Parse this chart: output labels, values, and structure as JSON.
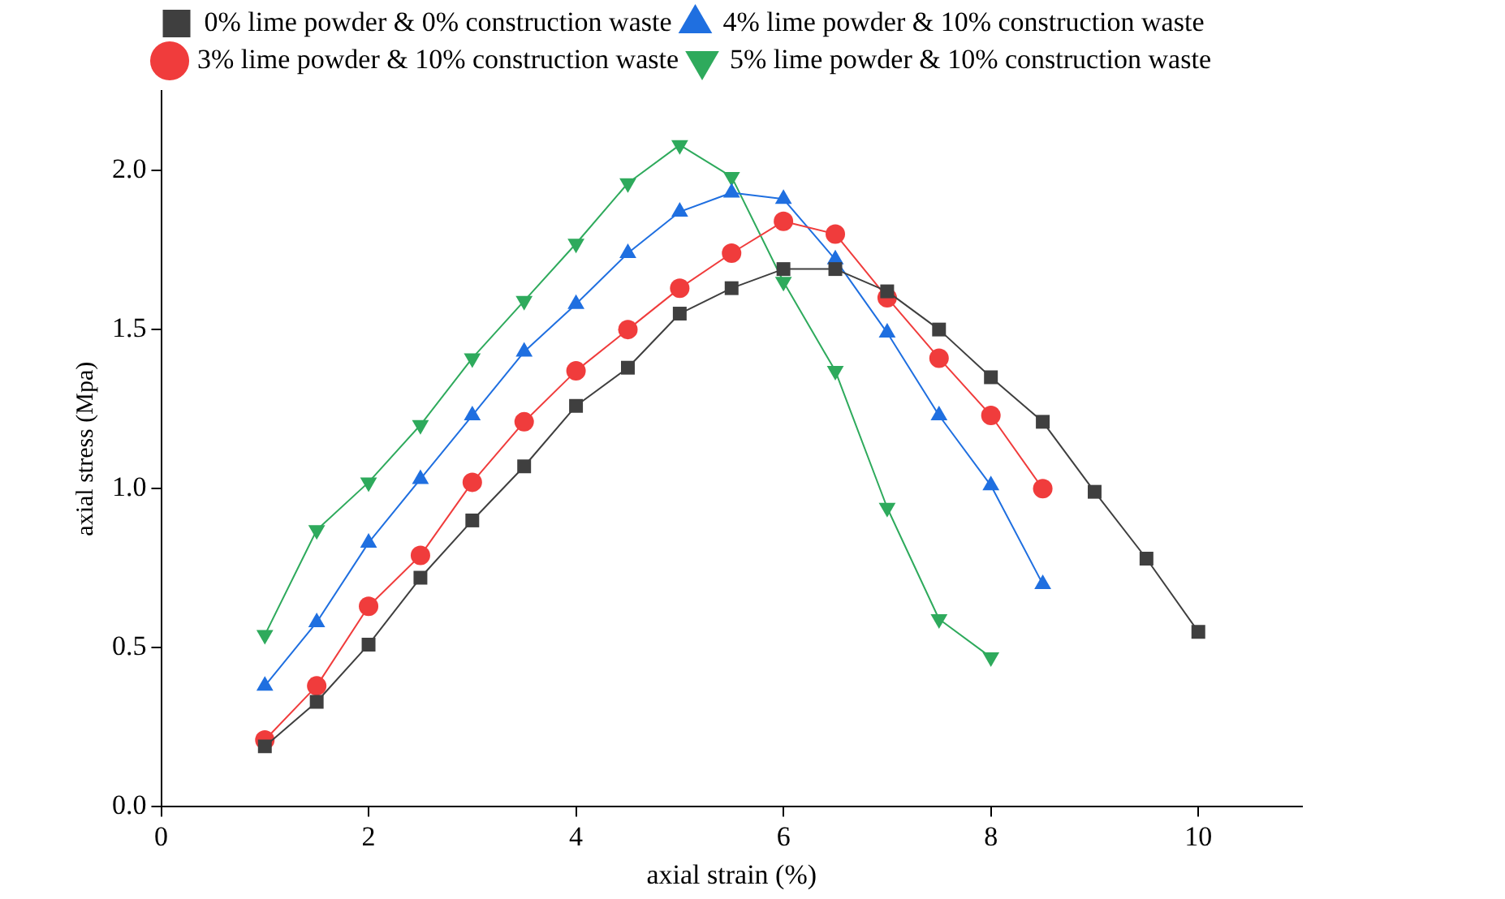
{
  "chart_data": {
    "type": "line",
    "xlabel": "axial strain (%)",
    "ylabel": "axial stress (Mpa)",
    "xlim": [
      0,
      11
    ],
    "xticks": [
      0,
      2,
      4,
      6,
      8,
      10
    ],
    "ylim": [
      0,
      2.25
    ],
    "yticks": [
      {
        "value": 0,
        "label": "0.0"
      },
      {
        "value": 0.5,
        "label": "0.5"
      },
      {
        "value": 1,
        "label": "1.0"
      },
      {
        "value": 1.5,
        "label": "1.5"
      },
      {
        "value": 2,
        "label": "2.0"
      }
    ],
    "grid": false,
    "legend": "top",
    "line_style": "solid",
    "series": [
      {
        "name": "0% lime powder & 0% construction waste",
        "color": "#3f3f3f",
        "marker": "square",
        "x": [
          1,
          1.5,
          2,
          2.5,
          3,
          3.5,
          4,
          4.5,
          5,
          5.5,
          6,
          6.5,
          7,
          7.5,
          8,
          8.5,
          9,
          9.5,
          10
        ],
        "values": [
          0.19,
          0.33,
          0.51,
          0.72,
          0.9,
          1.07,
          1.26,
          1.38,
          1.55,
          1.63,
          1.69,
          1.69,
          1.62,
          1.5,
          1.35,
          1.21,
          0.99,
          0.78,
          0.55
        ]
      },
      {
        "name": "3% lime powder & 10% construction waste",
        "color": "#f03c3c",
        "marker": "circle",
        "x": [
          1,
          1.5,
          2,
          2.5,
          3,
          3.5,
          4,
          4.5,
          5,
          5.5,
          6,
          6.5,
          7,
          7.5,
          8,
          8.5
        ],
        "values": [
          0.21,
          0.38,
          0.63,
          0.79,
          1.02,
          1.21,
          1.37,
          1.5,
          1.63,
          1.74,
          1.84,
          1.8,
          1.6,
          1.41,
          1.23,
          1.0
        ]
      },
      {
        "name": "4% lime powder & 10% construction waste",
        "color": "#1f6fe0",
        "marker": "triangle",
        "x": [
          1,
          1.5,
          2,
          2.5,
          3,
          3.5,
          4,
          4.5,
          5,
          5.5,
          6,
          6.5,
          7,
          7.5,
          8,
          8.5
        ],
        "values": [
          0.38,
          0.58,
          0.83,
          1.03,
          1.23,
          1.43,
          1.58,
          1.74,
          1.87,
          1.93,
          1.91,
          1.72,
          1.49,
          1.23,
          1.01,
          0.7
        ]
      },
      {
        "name": "5% lime powder & 10% construction waste",
        "color": "#2eaa5c",
        "marker": "triangle_down",
        "x": [
          1,
          1.5,
          2,
          2.5,
          3,
          3.5,
          4,
          4.5,
          5,
          5.5,
          6,
          6.5,
          7,
          7.5,
          8
        ],
        "values": [
          0.54,
          0.87,
          1.02,
          1.2,
          1.41,
          1.59,
          1.77,
          1.96,
          2.08,
          1.98,
          1.65,
          1.37,
          0.94,
          0.59,
          0.47
        ]
      }
    ]
  }
}
